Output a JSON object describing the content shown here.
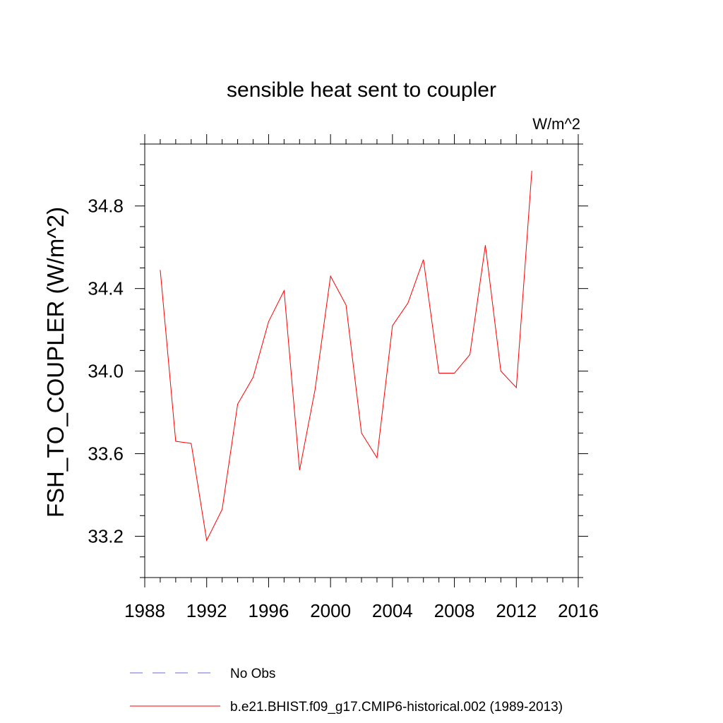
{
  "chart_data": {
    "type": "line",
    "title": "sensible heat sent to coupler",
    "units": "W/m^2",
    "xlabel": "",
    "ylabel": "FSH_TO_COUPLER  (W/m^2)",
    "xlim": [
      1988,
      2016
    ],
    "ylim": [
      33.0,
      35.1
    ],
    "xticks": [
      1988,
      1992,
      1996,
      2000,
      2004,
      2008,
      2012,
      2016
    ],
    "xtick_labels": [
      "1988",
      "1992",
      "1996",
      "2000",
      "2004",
      "2008",
      "2012",
      "2016"
    ],
    "yticks": [
      33.2,
      33.6,
      34.0,
      34.4,
      34.8
    ],
    "ytick_labels": [
      "33.2",
      "33.6",
      "34.0",
      "34.4",
      "34.8"
    ],
    "grid": false,
    "legend_position": "bottom",
    "series": [
      {
        "name": "No Obs",
        "style": "dashed",
        "color": "#6a6ad8",
        "x": [],
        "values": []
      },
      {
        "name": "b.e21.BHIST.f09_g17.CMIP6-historical.002 (1989-2013)",
        "style": "solid",
        "color": "#ff0000",
        "x": [
          1989,
          1990,
          1991,
          1992,
          1993,
          1994,
          1995,
          1996,
          1997,
          1998,
          1999,
          2000,
          2001,
          2002,
          2003,
          2004,
          2005,
          2006,
          2007,
          2008,
          2009,
          2010,
          2011,
          2012,
          2013
        ],
        "values": [
          34.49,
          33.66,
          33.65,
          33.18,
          33.33,
          33.84,
          33.97,
          34.24,
          34.39,
          33.52,
          33.91,
          34.46,
          34.32,
          33.7,
          33.58,
          34.22,
          34.33,
          34.54,
          33.99,
          33.99,
          34.08,
          34.61,
          34.0,
          33.92,
          34.97
        ]
      }
    ]
  }
}
